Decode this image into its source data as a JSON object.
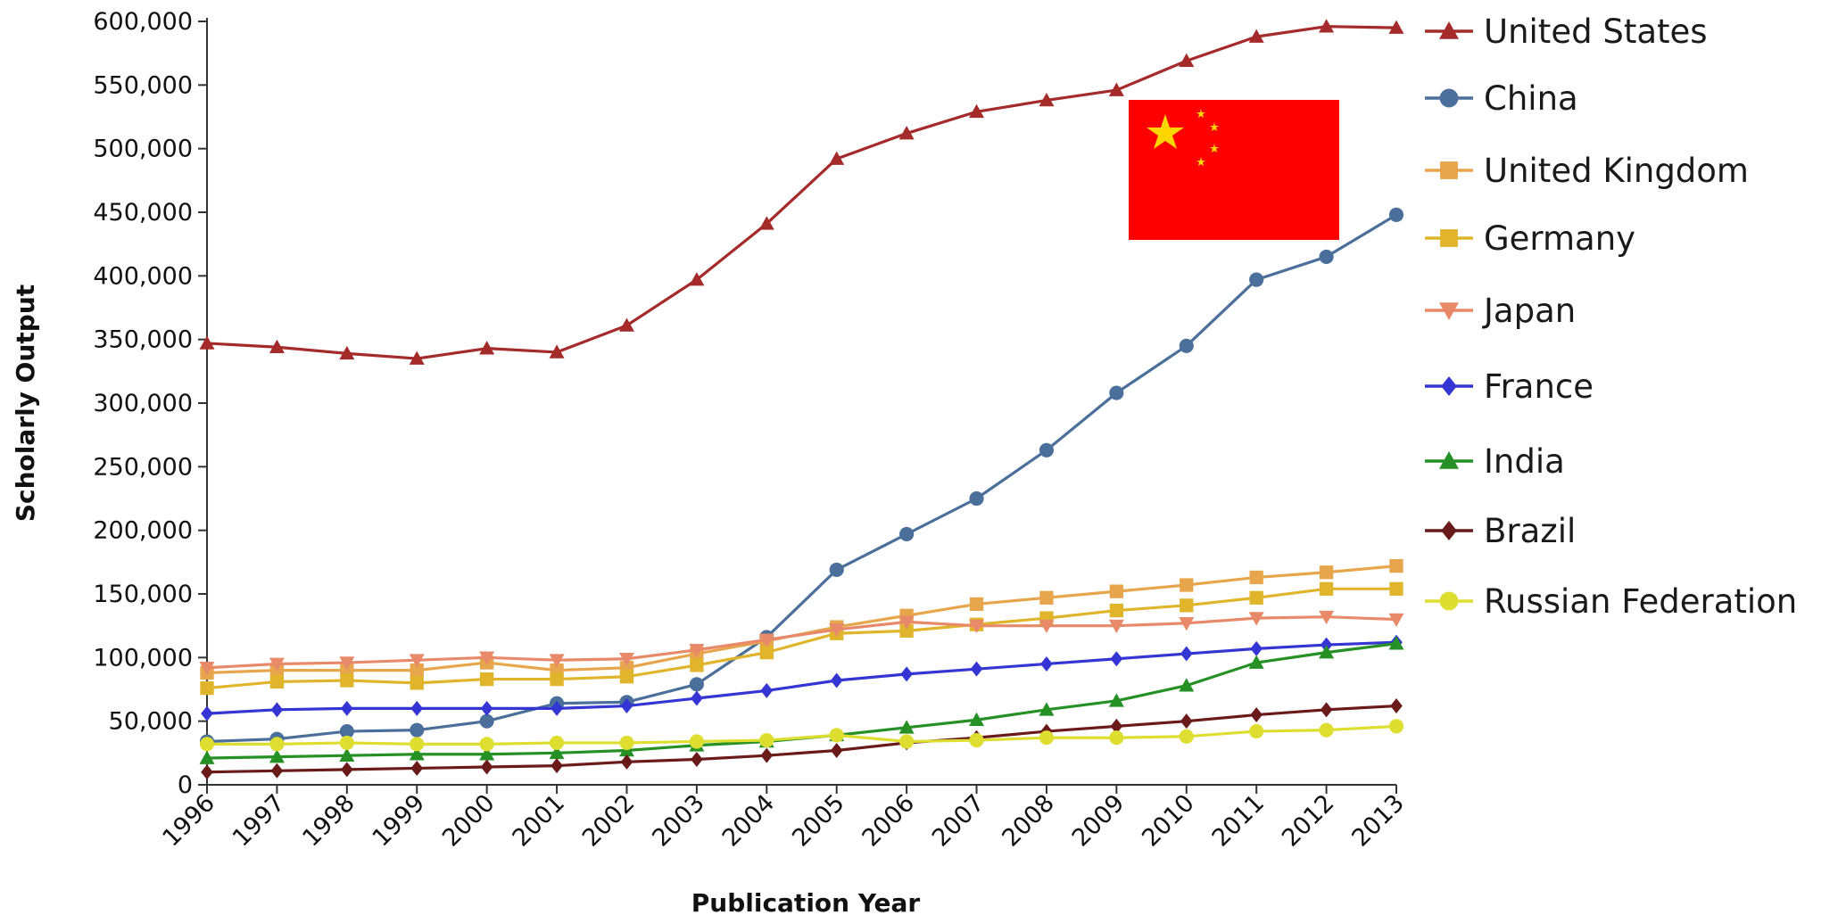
{
  "chart_data": {
    "type": "line",
    "title": "",
    "xlabel": "Publication Year",
    "ylabel": "Scholarly Output",
    "x": [
      1996,
      1997,
      1998,
      1999,
      2000,
      2001,
      2002,
      2003,
      2004,
      2005,
      2006,
      2007,
      2008,
      2009,
      2010,
      2011,
      2012,
      2013
    ],
    "ylim": [
      0,
      600000
    ],
    "yticks": [
      0,
      50000,
      100000,
      150000,
      200000,
      250000,
      300000,
      350000,
      400000,
      450000,
      500000,
      550000,
      600000
    ],
    "ytick_labels": [
      "0",
      "50,000",
      "100,000",
      "150,000",
      "200,000",
      "250,000",
      "300,000",
      "350,000",
      "400,000",
      "450,000",
      "500,000",
      "550,000",
      "600,000"
    ],
    "grid": false,
    "legend": "right",
    "series": [
      {
        "name": "United States",
        "color": "#a52a2a",
        "marker": "triangle-up",
        "values": [
          347000,
          344000,
          339000,
          335000,
          343000,
          340000,
          361000,
          397000,
          441000,
          492000,
          512000,
          529000,
          538000,
          546000,
          569000,
          588000,
          596000,
          595000
        ]
      },
      {
        "name": "China",
        "color": "#4a6f9b",
        "marker": "circle",
        "values": [
          34000,
          36000,
          42000,
          43000,
          50000,
          64000,
          65000,
          79000,
          116000,
          169000,
          197000,
          225000,
          263000,
          308000,
          345000,
          397000,
          415000,
          448000
        ]
      },
      {
        "name": "United Kingdom",
        "color": "#e8a64c",
        "marker": "square",
        "values": [
          88000,
          90000,
          90000,
          90000,
          96000,
          90000,
          92000,
          103000,
          113000,
          124000,
          133000,
          142000,
          147000,
          152000,
          157000,
          163000,
          167000,
          172000
        ]
      },
      {
        "name": "Germany",
        "color": "#e0b52c",
        "marker": "square",
        "values": [
          76000,
          81000,
          82000,
          80000,
          83000,
          83000,
          85000,
          94000,
          104000,
          119000,
          121000,
          126000,
          131000,
          137000,
          141000,
          147000,
          154000,
          154000
        ]
      },
      {
        "name": "Japan",
        "color": "#e8896a",
        "marker": "triangle-down",
        "values": [
          92000,
          95000,
          96000,
          98000,
          100000,
          98000,
          99000,
          106000,
          114000,
          122000,
          128000,
          125000,
          125000,
          125000,
          127000,
          131000,
          132000,
          130000
        ]
      },
      {
        "name": "France",
        "color": "#3535d4",
        "marker": "diamond",
        "values": [
          56000,
          59000,
          60000,
          60000,
          60000,
          60000,
          62000,
          68000,
          74000,
          82000,
          87000,
          91000,
          95000,
          99000,
          103000,
          107000,
          110000,
          112000
        ]
      },
      {
        "name": "India",
        "color": "#259125",
        "marker": "triangle-up",
        "values": [
          21000,
          22000,
          23000,
          24000,
          24000,
          25000,
          27000,
          31000,
          34000,
          39000,
          45000,
          51000,
          59000,
          66000,
          78000,
          96000,
          104000,
          111000
        ]
      },
      {
        "name": "Brazil",
        "color": "#6b1a1a",
        "marker": "diamond",
        "values": [
          10000,
          11000,
          12000,
          13000,
          14000,
          15000,
          18000,
          20000,
          23000,
          27000,
          33000,
          37000,
          42000,
          46000,
          50000,
          55000,
          59000,
          62000
        ]
      },
      {
        "name": "Russian Federation",
        "color": "#dede30",
        "marker": "circle",
        "values": [
          32000,
          32000,
          33000,
          32000,
          32000,
          33000,
          33000,
          34000,
          35000,
          39000,
          34000,
          35000,
          37000,
          37000,
          38000,
          42000,
          43000,
          46000
        ]
      }
    ]
  }
}
